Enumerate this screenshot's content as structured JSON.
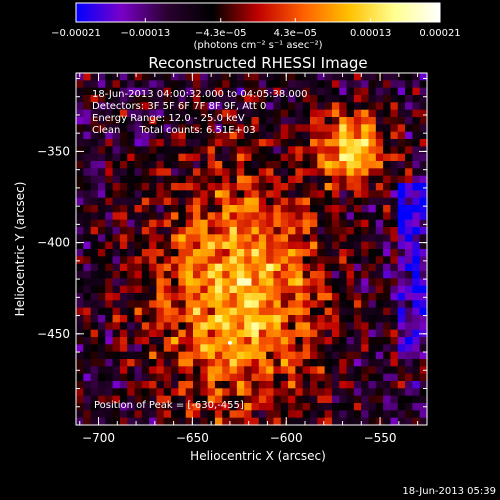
{
  "chart_data": {
    "type": "heatmap",
    "title": "Reconstructed RHESSI Image",
    "xlabel": "Heliocentric X (arcsec)",
    "ylabel": "Heliocentric Y (arcsec)",
    "xlim": [
      -712,
      -525
    ],
    "ylim": [
      -500,
      -307
    ],
    "x_ticks": [
      -700,
      -650,
      -600,
      -550
    ],
    "x_tick_labels": [
      "−700",
      "−650",
      "−600",
      "−550"
    ],
    "y_ticks": [
      -350,
      -400,
      -450
    ],
    "y_tick_labels": [
      "−350",
      "−400",
      "−450"
    ],
    "colorbar": {
      "range": [
        -0.00021,
        0.00021
      ],
      "ticks": [
        -0.00021,
        -0.00013,
        -4.3e-05,
        4.3e-05,
        0.00013,
        0.00021
      ],
      "tick_labels": [
        "−0.00021",
        "−0.00013",
        "−4.3e−05",
        "4.3e−05",
        "0.00013",
        "0.00021"
      ],
      "unit_label": "(photons cm⁻² s⁻¹ asec⁻²)",
      "colors": [
        "#0000ff",
        "#7a00c8",
        "#2a0030",
        "#000000",
        "#c00000",
        "#ff6000",
        "#ffc000",
        "#ffff90",
        "#ffffff"
      ]
    },
    "annotations": [
      "18-Jun-2013 04:00:32.000 to 04:05:38.000",
      "Detectors: 3F 5F 6F 7F 8F 9F, Att 0",
      "Energy Range: 12.0 - 25.0 keV",
      "Clean      Total counts: 6.51E+03"
    ],
    "peak_label": "Position of Peak = [-630,-455]",
    "grid": false
  },
  "footer": {
    "timestamp": "18-Jun-2013 05:39"
  }
}
